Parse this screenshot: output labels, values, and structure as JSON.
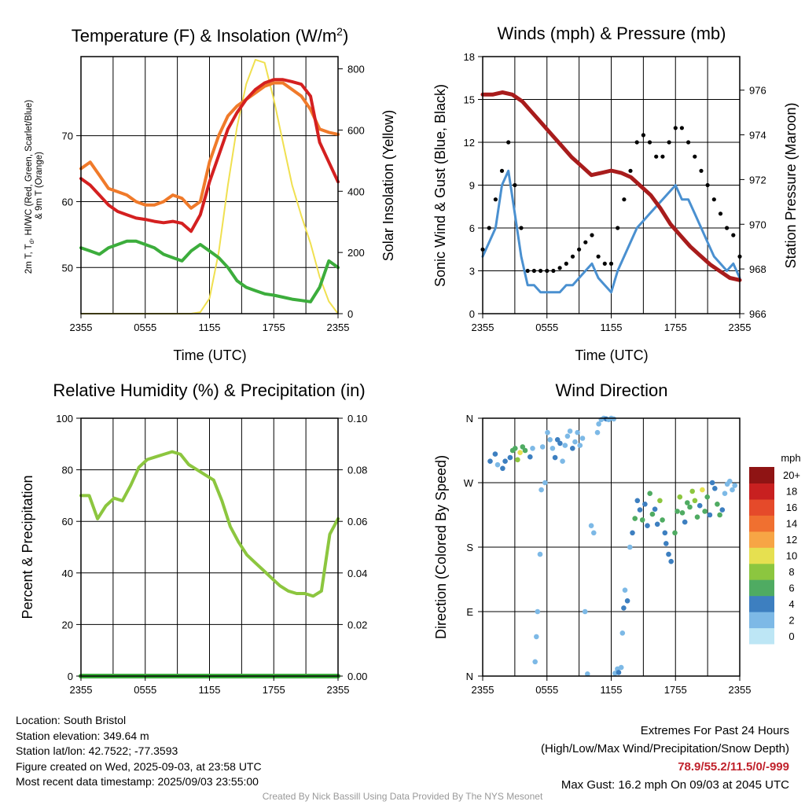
{
  "chart_data": [
    {
      "type": "line",
      "title": "Temperature (F) & Insolation (W/m²)",
      "xlabel": "Time (UTC)",
      "ylabel": "2m T, Td, HI/WC (Red, Green, Scarlet/Blue) & 9m T (Orange)",
      "y2label": "Solar Insolation (Yellow)",
      "x_ticks": [
        "2355",
        "0555",
        "1155",
        "1755",
        "2355"
      ],
      "ylim": [
        43,
        82
      ],
      "y_ticks": [
        50,
        60,
        70
      ],
      "y2lim": [
        0,
        840
      ],
      "y2_ticks": [
        0,
        200,
        400,
        600,
        800
      ],
      "series": [
        {
          "color": "#f07a2a",
          "values": [
            65,
            66,
            64,
            62,
            61.5,
            61,
            60,
            59.5,
            59.5,
            60,
            61,
            60.5,
            59,
            60,
            66,
            70,
            73,
            74.5,
            75.5,
            76.5,
            77.5,
            78,
            78,
            77,
            76,
            74,
            71,
            70.5,
            70.2
          ]
        },
        {
          "color": "#d42020",
          "values": [
            63.5,
            62.5,
            61,
            59.5,
            58.5,
            58,
            57.5,
            57.3,
            57,
            56.8,
            57,
            56.7,
            55.5,
            58,
            63,
            67,
            71,
            73.5,
            75.5,
            77,
            78,
            78.5,
            78.5,
            78.2,
            77.8,
            76,
            69,
            66,
            63
          ]
        },
        {
          "color": "#3cad3c",
          "values": [
            53,
            52.5,
            52,
            53,
            53.5,
            54,
            54,
            53.5,
            53,
            52,
            51.5,
            51,
            52.5,
            53.5,
            52.5,
            51.5,
            50,
            48,
            47,
            46.5,
            46,
            45.8,
            45.5,
            45.2,
            45,
            44.8,
            47,
            51,
            50
          ]
        },
        {
          "color": "#f0e050",
          "values": [
            0,
            0,
            0,
            0,
            0,
            0,
            0,
            0,
            0,
            0,
            0,
            0,
            0,
            5,
            50,
            200,
            420,
            610,
            750,
            830,
            820,
            700,
            560,
            420,
            320,
            230,
            120,
            40,
            0
          ]
        }
      ]
    },
    {
      "type": "line",
      "title": "Winds (mph) & Pressure (mb)",
      "xlabel": "Time (UTC)",
      "ylabel": "Sonic Wind & Gust (Blue, Black)",
      "y2label": "Station Pressure (Maroon)",
      "x_ticks": [
        "2355",
        "0555",
        "1155",
        "1755",
        "2355"
      ],
      "ylim": [
        0,
        18
      ],
      "y_ticks": [
        0,
        3,
        6,
        9,
        12,
        15,
        18
      ],
      "y2lim": [
        966,
        977.5
      ],
      "y2_ticks": [
        966,
        968,
        970,
        972,
        974,
        976
      ],
      "series": [
        {
          "name": "wind",
          "color": "#4a90d0",
          "values": [
            4,
            5,
            6,
            9,
            10,
            7,
            4,
            2,
            2,
            1.5,
            1.5,
            1.5,
            1.5,
            2,
            2,
            2.5,
            3,
            3.5,
            2.5,
            2,
            1.5,
            3,
            4,
            5,
            6,
            6.5,
            7,
            7.5,
            8,
            8.5,
            9,
            8,
            8,
            7,
            6,
            5,
            4,
            3.5,
            3,
            3.5,
            2.5
          ]
        },
        {
          "name": "gust",
          "color": "#000000",
          "values": [
            4.5,
            6,
            8,
            10,
            12,
            9,
            6,
            3,
            3,
            3,
            3,
            3,
            3.2,
            3.5,
            4,
            4.5,
            5,
            5.5,
            4,
            3.5,
            3.5,
            6,
            8,
            10,
            12,
            12.5,
            12,
            11,
            11,
            12,
            13,
            13,
            12,
            11,
            10,
            9,
            8,
            7,
            6,
            5.5,
            4
          ]
        },
        {
          "name": "pressure",
          "color": "#a81c1c",
          "values": [
            975.8,
            975.8,
            975.9,
            975.8,
            975.5,
            975.0,
            974.5,
            974.0,
            973.5,
            973.0,
            972.6,
            972.2,
            972.3,
            972.4,
            972.3,
            972.1,
            971.7,
            971.3,
            970.7,
            970.0,
            969.5,
            969.0,
            968.6,
            968.2,
            967.9,
            967.6,
            967.5
          ]
        }
      ]
    },
    {
      "type": "line",
      "title": "Relative Humidity (%) & Precipitation (in)",
      "xlabel": "",
      "ylabel": "Percent & Precipitation",
      "x_ticks": [
        "2355",
        "0555",
        "1155",
        "1755",
        "2355"
      ],
      "ylim": [
        0,
        100
      ],
      "y_ticks": [
        0,
        20,
        40,
        60,
        80,
        100
      ],
      "y2lim": [
        0,
        0.1
      ],
      "y2_ticks": [
        "0.00",
        "0.02",
        "0.04",
        "0.06",
        "0.08",
        "0.10"
      ],
      "series": [
        {
          "name": "rh",
          "color": "#8cc63f",
          "values": [
            70,
            70,
            61,
            66,
            69,
            68,
            74,
            81,
            84,
            85,
            86,
            87,
            86,
            82,
            80,
            78,
            76,
            68,
            58,
            52,
            47,
            44,
            41,
            38,
            35,
            33,
            32,
            32,
            31,
            33,
            55,
            61
          ]
        },
        {
          "name": "precip",
          "color": "#3cad3c",
          "values": [
            0,
            0
          ]
        }
      ]
    },
    {
      "type": "scatter",
      "title": "Wind Direction",
      "xlabel": "",
      "ylabel": "Direction (Colored By Speed)",
      "x_ticks": [
        "2355",
        "0555",
        "1155",
        "1755",
        "2355"
      ],
      "y_ticks": [
        "N",
        "E",
        "S",
        "W",
        "N"
      ],
      "ylim": [
        0,
        360
      ],
      "colorbar_title": "mph",
      "colorbar_labels": [
        "0",
        "2",
        "4",
        "6",
        "8",
        "10",
        "12",
        "14",
        "16",
        "18",
        "20+"
      ],
      "colorbar_colors": [
        "#bde6f5",
        "#7db9e6",
        "#3d7fc0",
        "#4fab62",
        "#8cc63f",
        "#e6e050",
        "#f7a545",
        "#f07030",
        "#e54a2a",
        "#c82020",
        "#8f1414"
      ],
      "points": [
        [
          0.3,
          300,
          4
        ],
        [
          0.5,
          310,
          5
        ],
        [
          0.6,
          295,
          3
        ],
        [
          0.8,
          290,
          4
        ],
        [
          0.9,
          300,
          4
        ],
        [
          1.1,
          305,
          5
        ],
        [
          1.2,
          315,
          6
        ],
        [
          1.3,
          318,
          7
        ],
        [
          1.4,
          302,
          9
        ],
        [
          1.5,
          312,
          10
        ],
        [
          1.6,
          320,
          7
        ],
        [
          1.7,
          315,
          6
        ],
        [
          1.9,
          306,
          5
        ],
        [
          2.0,
          318,
          3
        ],
        [
          2.1,
          20,
          2
        ],
        [
          2.15,
          55,
          3
        ],
        [
          2.2,
          90,
          2
        ],
        [
          2.3,
          170,
          2
        ],
        [
          2.35,
          260,
          3
        ],
        [
          2.4,
          320,
          2
        ],
        [
          2.5,
          270,
          3
        ],
        [
          2.6,
          340,
          2
        ],
        [
          2.7,
          330,
          2
        ],
        [
          2.8,
          318,
          3
        ],
        [
          2.9,
          305,
          4
        ],
        [
          3.0,
          330,
          4
        ],
        [
          3.1,
          325,
          5
        ],
        [
          3.2,
          300,
          3
        ],
        [
          3.3,
          322,
          3
        ],
        [
          3.4,
          335,
          3
        ],
        [
          3.5,
          342,
          2
        ],
        [
          3.6,
          318,
          4
        ],
        [
          3.7,
          327,
          3
        ],
        [
          3.8,
          340,
          2
        ],
        [
          3.9,
          322,
          3
        ],
        [
          4.0,
          332,
          2
        ],
        [
          4.1,
          90,
          2
        ],
        [
          4.2,
          3,
          2
        ],
        [
          4.35,
          210,
          2
        ],
        [
          4.45,
          200,
          3
        ],
        [
          4.6,
          340,
          3
        ],
        [
          4.65,
          352,
          3
        ],
        [
          4.75,
          358,
          3
        ],
        [
          4.85,
          360,
          3
        ],
        [
          4.95,
          359,
          4
        ],
        [
          5.05,
          358,
          3
        ],
        [
          5.15,
          360,
          3
        ],
        [
          5.25,
          359,
          2
        ],
        [
          5.3,
          4,
          2
        ],
        [
          5.4,
          10,
          3
        ],
        [
          5.45,
          5,
          4
        ],
        [
          5.55,
          12,
          3
        ],
        [
          5.6,
          60,
          3
        ],
        [
          5.65,
          95,
          4
        ],
        [
          5.7,
          120,
          3
        ],
        [
          5.8,
          105,
          4
        ],
        [
          5.9,
          180,
          3
        ],
        [
          6.0,
          200,
          4
        ],
        [
          6.1,
          220,
          6
        ],
        [
          6.2,
          245,
          5
        ],
        [
          6.3,
          232,
          4
        ],
        [
          6.4,
          218,
          6
        ],
        [
          6.5,
          240,
          5
        ],
        [
          6.6,
          210,
          4
        ],
        [
          6.7,
          255,
          7
        ],
        [
          6.8,
          226,
          6
        ],
        [
          6.9,
          233,
          5
        ],
        [
          7.0,
          212,
          4
        ],
        [
          7.1,
          245,
          8
        ],
        [
          7.2,
          218,
          6
        ],
        [
          7.3,
          200,
          5
        ],
        [
          7.35,
          185,
          4
        ],
        [
          7.45,
          170,
          4
        ],
        [
          7.55,
          160,
          4
        ],
        [
          7.7,
          200,
          7
        ],
        [
          7.8,
          230,
          6
        ],
        [
          7.9,
          250,
          8
        ],
        [
          8.0,
          228,
          6
        ],
        [
          8.1,
          215,
          5
        ],
        [
          8.2,
          242,
          7
        ],
        [
          8.3,
          236,
          6
        ],
        [
          8.4,
          258,
          9
        ],
        [
          8.5,
          245,
          8
        ],
        [
          8.6,
          222,
          6
        ],
        [
          8.7,
          238,
          5
        ],
        [
          8.8,
          260,
          10
        ],
        [
          8.9,
          230,
          6
        ],
        [
          9.0,
          250,
          7
        ],
        [
          9.1,
          225,
          5
        ],
        [
          9.2,
          270,
          4
        ],
        [
          9.3,
          262,
          4
        ],
        [
          9.4,
          240,
          7
        ],
        [
          9.5,
          225,
          6
        ],
        [
          9.6,
          232,
          5
        ],
        [
          9.7,
          255,
          3
        ],
        [
          9.8,
          268,
          2
        ],
        [
          9.9,
          272,
          3
        ],
        [
          10.0,
          260,
          2
        ],
        [
          10.1,
          266,
          3
        ]
      ]
    }
  ],
  "info": {
    "location": "Location: South Bristol",
    "elevation": "Station elevation: 349.64 m",
    "latlon": "Station lat/lon: 42.7522; -77.3593",
    "created": "Figure created on Wed, 2025-09-03, at 23:58 UTC",
    "recent": "Most recent data timestamp: 2025/09/03 23:55:00"
  },
  "extremes": {
    "title": "Extremes For Past 24 Hours",
    "subtitle": "(High/Low/Max Wind/Precipitation/Snow Depth)",
    "values": "78.9/55.2/11.5/0/-999",
    "gust": "Max Gust: 16.2 mph On 09/03 at 2045 UTC"
  },
  "credit": "Created By Nick Bassill Using Data Provided By The NYS Mesonet"
}
